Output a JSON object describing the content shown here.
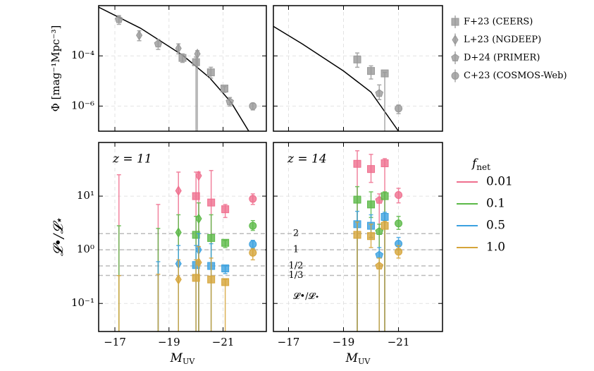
{
  "chart_data": [
    {
      "type": "scatter",
      "ylog": true,
      "grid": true,
      "xlim": [
        -16.4,
        -22.6
      ],
      "ylim": [
        1e-07,
        0.01
      ],
      "xticks": [
        -17,
        -19,
        -21
      ],
      "show_xtick_labels": false,
      "yticks": [
        {
          "value": 1e-06,
          "label": "10⁻⁶"
        },
        {
          "value": 0.0001,
          "label": "10⁻⁴"
        }
      ],
      "ylabel": "Φ [mag⁻¹Mpc⁻³]",
      "curve": {
        "color": "#000000",
        "x": [
          -16.4,
          -17.95,
          -19.5,
          -20.5,
          -21.3,
          -21.95
        ],
        "values": [
          0.0087,
          0.00126,
          0.000107,
          1.35e-05,
          1.4e-06,
          1e-07
        ]
      },
      "series": [
        {
          "name": "F+23 (CEERS)",
          "marker": "square",
          "color": "#999999",
          "x": [
            -19.5,
            -20.0,
            -20.55,
            -21.05
          ],
          "values": [
            8.3e-05,
            5.6e-05,
            2.2e-05,
            5e-06
          ],
          "lower": [
            5.5e-05,
            null,
            1.3e-05,
            3.5e-06
          ],
          "upper": [
            0.00012,
            9e-05,
            3.5e-05,
            6e-06
          ]
        },
        {
          "name": "L+23 (NGDEEP)",
          "marker": "diamond",
          "color": "#999999",
          "x": [
            -17.9,
            -19.35,
            -20.05
          ],
          "values": [
            0.00066,
            0.0002,
            0.00012
          ],
          "lower": [
            0.0004,
            0.00012,
            null
          ],
          "upper": [
            0.001,
            0.0003,
            0.00016
          ]
        },
        {
          "name": "D+24 (PRIMER)",
          "marker": "pentagon",
          "color": "#999999",
          "x": [
            -17.15,
            -18.6,
            -21.25
          ],
          "values": [
            0.0028,
            0.0003,
            1.5e-06
          ],
          "lower": [
            0.0018,
            0.00018,
            1e-06
          ],
          "upper": [
            0.004,
            0.00045,
            2.2e-06
          ]
        },
        {
          "name": "C+23 (COSMOS-Web)",
          "marker": "circle",
          "color": "#999999",
          "x": [
            -22.1
          ],
          "values": [
            1e-06
          ],
          "lower": [
            7e-07
          ],
          "upper": [
            1.3e-06
          ]
        }
      ]
    },
    {
      "type": "scatter",
      "ylog": true,
      "grid": true,
      "xlim": [
        -16.45,
        -22.6
      ],
      "ylim": [
        1e-07,
        0.01
      ],
      "xticks": [
        -17,
        -19,
        -21
      ],
      "show_xtick_labels": false,
      "yticks": [
        1e-06,
        0.0001
      ],
      "show_ytick_labels": false,
      "curve": {
        "color": "#000000",
        "x": [
          -16.45,
          -17.5,
          -19,
          -20,
          -21
        ],
        "values": [
          0.0015,
          0.0003,
          2.5e-05,
          3.6e-06,
          1e-07
        ]
      },
      "series": [
        {
          "marker": "square",
          "color": "#999999",
          "x": [
            -19.5,
            -20.0,
            -20.5
          ],
          "values": [
            7.2e-05,
            2.5e-05,
            2e-05
          ],
          "lower": [
            3.5e-05,
            1.2e-05,
            null
          ],
          "upper": [
            0.00013,
            4e-05,
            2.2e-05
          ]
        },
        {
          "marker": "pentagon",
          "color": "#999999",
          "x": [
            -20.3
          ],
          "values": [
            3.2e-06
          ],
          "lower": [
            1.8e-06
          ],
          "upper": [
            7e-06
          ]
        },
        {
          "marker": "circle",
          "color": "#999999",
          "x": [
            -21.0
          ],
          "values": [
            8e-07
          ],
          "lower": [
            5e-07
          ],
          "upper": [
            1.1e-06
          ]
        }
      ]
    },
    {
      "type": "scatter",
      "ylog": true,
      "grid": true,
      "xlim": [
        -16.4,
        -22.6
      ],
      "ylim": [
        0.03,
        100
      ],
      "xticks": [
        {
          "value": -17,
          "label": "−17"
        },
        {
          "value": -19,
          "label": "−19"
        },
        {
          "value": -21,
          "label": "−21"
        }
      ],
      "show_xtick_labels": true,
      "yticks": [
        {
          "value": 0.1,
          "label": "10⁻¹"
        },
        {
          "value": 1,
          "label": "10⁰"
        },
        {
          "value": 10,
          "label": "10¹"
        }
      ],
      "panel_label": "z = 11",
      "xlabel": [
        "M",
        "UV"
      ],
      "ylabel": "𝓛•/𝓛⋆",
      "hlines": [
        2,
        1,
        0.5,
        0.333
      ],
      "hline_color": "#bbbbbb",
      "legend_title": [
        "f",
        "net"
      ],
      "x": [
        -17.15,
        -18.6,
        -19.35,
        -20.0,
        -20.1,
        -20.56,
        -21.08,
        -22.1
      ],
      "markers": [
        null,
        null,
        "diamond",
        "square",
        "diamond",
        "square",
        "square",
        "circle"
      ],
      "series": [
        {
          "name": "0.01",
          "color": "#ef6f8e",
          "values": [
            null,
            null,
            12.6,
            10,
            24,
            7.6,
            5.7,
            8.9
          ],
          "lower": [
            null,
            null,
            null,
            null,
            null,
            null,
            4,
            7
          ],
          "upper": [
            25,
            7,
            28,
            28,
            28,
            30,
            7,
            11
          ]
        },
        {
          "name": "0.1",
          "color": "#5bb947",
          "values": [
            null,
            null,
            2.1,
            1.9,
            3.8,
            1.66,
            1.35,
            2.8
          ],
          "lower": [
            null,
            null,
            null,
            null,
            null,
            null,
            1.1,
            2.3
          ],
          "upper": [
            2.8,
            2.5,
            4.5,
            4.2,
            7.5,
            4.5,
            1.5,
            3.5
          ]
        },
        {
          "name": "0.5",
          "color": "#3ba1e0",
          "values": [
            null,
            null,
            0.55,
            0.52,
            1.0,
            0.5,
            0.45,
            1.27
          ],
          "lower": [
            null,
            null,
            null,
            null,
            null,
            null,
            0.36,
            1.05
          ],
          "upper": [
            null,
            0.6,
            1.2,
            1.2,
            2,
            1.3,
            0.5,
            1.5
          ]
        },
        {
          "name": "1.0",
          "color": "#d6a53a",
          "values": [
            null,
            null,
            0.28,
            0.3,
            0.58,
            0.28,
            0.25,
            0.88
          ],
          "lower": [
            null,
            null,
            null,
            null,
            null,
            null,
            null,
            0.65
          ],
          "upper": [
            0.33,
            0.35,
            0.65,
            0.65,
            1.15,
            0.7,
            0.28,
            1.05
          ]
        }
      ]
    },
    {
      "type": "scatter",
      "ylog": true,
      "grid": true,
      "xlim": [
        -16.45,
        -22.6
      ],
      "ylim": [
        0.03,
        100
      ],
      "xticks": [
        {
          "value": -17,
          "label": "−17"
        },
        {
          "value": -19,
          "label": "−19"
        },
        {
          "value": -21,
          "label": "−21"
        }
      ],
      "show_xtick_labels": true,
      "yticks": [
        0.1,
        1,
        10
      ],
      "show_ytick_labels": false,
      "panel_label": "z = 14",
      "xlabel": [
        "M",
        "UV"
      ],
      "hlines": [
        {
          "value": 2,
          "label": "2"
        },
        {
          "value": 1,
          "label": "1"
        },
        {
          "value": 0.5,
          "label": "1/2"
        },
        {
          "value": 0.333,
          "label": "1/3"
        }
      ],
      "hline_color": "#bbbbbb",
      "hline_note": "𝓛•/𝓛⋆",
      "x": [
        -19.5,
        -20.0,
        -20.3,
        -20.5,
        -21.0
      ],
      "markers": [
        "square",
        "square",
        "pentagon",
        "square",
        "circle"
      ],
      "series": [
        {
          "color": "#ef6f8e",
          "values": [
            40,
            32,
            8.4,
            41,
            10.5
          ],
          "lower": [
            null,
            18,
            null,
            null,
            7.5
          ],
          "upper": [
            70,
            60,
            11,
            50,
            14
          ]
        },
        {
          "color": "#5bb947",
          "values": [
            8.6,
            7,
            2.2,
            10,
            3.1
          ],
          "lower": [
            null,
            4,
            null,
            null,
            2.4
          ],
          "upper": [
            15,
            12,
            3,
            12,
            4.2
          ]
        },
        {
          "color": "#3ba1e0",
          "values": [
            3.0,
            2.8,
            0.8,
            4.1,
            1.3
          ],
          "lower": [
            null,
            1.7,
            null,
            null,
            1.0
          ],
          "upper": [
            5.2,
            4.5,
            1.1,
            5,
            1.7
          ]
        },
        {
          "color": "#d6a53a",
          "values": [
            1.9,
            1.8,
            0.5,
            2.8,
            0.92
          ],
          "lower": [
            null,
            1.1,
            null,
            null,
            0.7
          ],
          "upper": [
            3.3,
            3,
            0.7,
            3.4,
            1.2
          ]
        }
      ]
    }
  ]
}
